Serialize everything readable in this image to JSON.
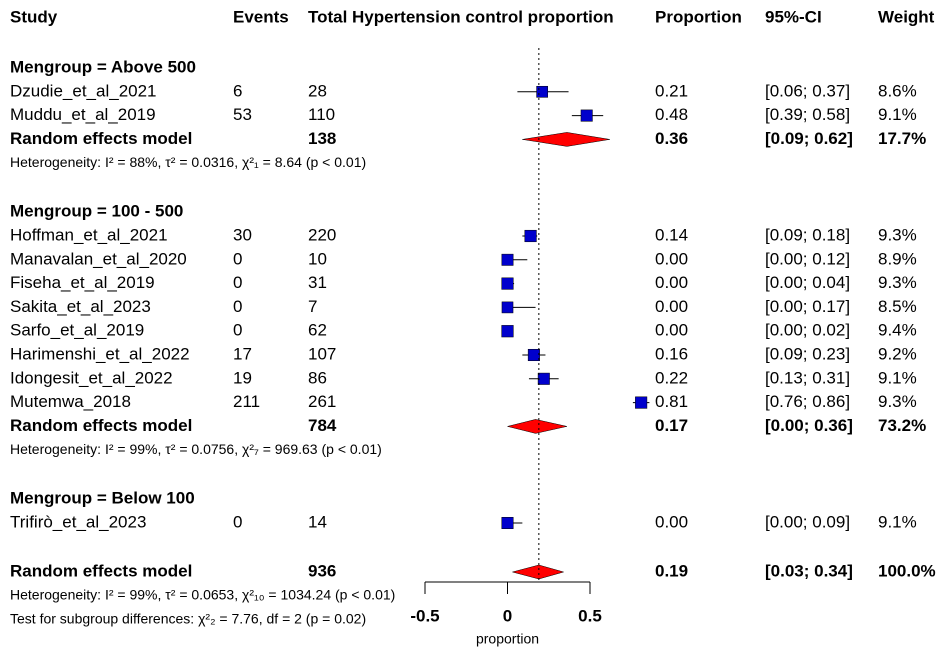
{
  "chart_data": {
    "type": "forest",
    "columns": [
      "Study",
      "Events",
      "Total",
      "Hypertension control proportion",
      "Proportion",
      "95%-CI",
      "Weight"
    ],
    "xlabel": "proportion",
    "xlim": [
      -0.5,
      0.5
    ],
    "xticks": [
      -0.5,
      0,
      0.5
    ],
    "color": "#0000cc",
    "summary_color": "#ff0000",
    "groups": [
      {
        "title": "Mengroup = Above 500",
        "studies": [
          {
            "name": "Dzudie_et_al_2021",
            "events": 6,
            "total": 28,
            "proportion": 0.21,
            "proportion_label": "0.21",
            "ci": [
              0.06,
              0.37
            ],
            "ci_label": "[0.06; 0.37]",
            "weight": 8.6,
            "weight_label": "8.6%"
          },
          {
            "name": "Muddu_et_al_2019",
            "events": 53,
            "total": 110,
            "proportion": 0.48,
            "proportion_label": "0.48",
            "ci": [
              0.39,
              0.58
            ],
            "ci_label": "[0.39; 0.58]",
            "weight": 9.1,
            "weight_label": "9.1%"
          }
        ],
        "summary": {
          "name": "Random effects model",
          "total": 138,
          "proportion": 0.36,
          "proportion_label": "0.36",
          "ci": [
            0.09,
            0.62
          ],
          "ci_label": "[0.09; 0.62]",
          "weight": 17.7,
          "weight_label": "17.7%"
        },
        "heterogeneity": "Heterogeneity: I² = 88%, τ² = 0.0316, χ²₁ = 8.64 (p < 0.01)"
      },
      {
        "title": "Mengroup = 100 - 500",
        "studies": [
          {
            "name": "Hoffman_et_al_2021",
            "events": 30,
            "total": 220,
            "proportion": 0.14,
            "proportion_label": "0.14",
            "ci": [
              0.09,
              0.18
            ],
            "ci_label": "[0.09; 0.18]",
            "weight": 9.3,
            "weight_label": "9.3%"
          },
          {
            "name": "Manavalan_et_al_2020",
            "events": 0,
            "total": 10,
            "proportion": 0,
            "proportion_label": "0.00",
            "ci": [
              0,
              0.12
            ],
            "ci_label": "[0.00; 0.12]",
            "weight": 8.9,
            "weight_label": "8.9%"
          },
          {
            "name": "Fiseha_et_al_2019",
            "events": 0,
            "total": 31,
            "proportion": 0,
            "proportion_label": "0.00",
            "ci": [
              0,
              0.04
            ],
            "ci_label": "[0.00; 0.04]",
            "weight": 9.3,
            "weight_label": "9.3%"
          },
          {
            "name": "Sakita_et_al_2023",
            "events": 0,
            "total": 7,
            "proportion": 0,
            "proportion_label": "0.00",
            "ci": [
              0,
              0.17
            ],
            "ci_label": "[0.00; 0.17]",
            "weight": 8.5,
            "weight_label": "8.5%"
          },
          {
            "name": "Sarfo_et_al_2019",
            "events": 0,
            "total": 62,
            "proportion": 0,
            "proportion_label": "0.00",
            "ci": [
              0,
              0.02
            ],
            "ci_label": "[0.00; 0.02]",
            "weight": 9.4,
            "weight_label": "9.4%"
          },
          {
            "name": "Harimenshi_et_al_2022",
            "events": 17,
            "total": 107,
            "proportion": 0.16,
            "proportion_label": "0.16",
            "ci": [
              0.09,
              0.23
            ],
            "ci_label": "[0.09; 0.23]",
            "weight": 9.2,
            "weight_label": "9.2%"
          },
          {
            "name": "Idongesit_et_al_2022",
            "events": 19,
            "total": 86,
            "proportion": 0.22,
            "proportion_label": "0.22",
            "ci": [
              0.13,
              0.31
            ],
            "ci_label": "[0.13; 0.31]",
            "weight": 9.1,
            "weight_label": "9.1%"
          },
          {
            "name": "Mutemwa_2018",
            "events": 211,
            "total": 261,
            "proportion": 0.81,
            "proportion_label": "0.81",
            "ci": [
              0.76,
              0.86
            ],
            "ci_label": "[0.76; 0.86]",
            "weight": 9.3,
            "weight_label": "9.3%"
          }
        ],
        "summary": {
          "name": "Random effects model",
          "total": 784,
          "proportion": 0.17,
          "proportion_label": "0.17",
          "ci": [
            0,
            0.36
          ],
          "ci_label": "[0.00; 0.36]",
          "weight": 73.2,
          "weight_label": "73.2%"
        },
        "heterogeneity": "Heterogeneity: I² = 99%, τ² = 0.0756, χ²₇ = 969.63 (p < 0.01)"
      },
      {
        "title": "Mengroup = Below 100",
        "studies": [
          {
            "name": "Trifirò_et_al_2023",
            "events": 0,
            "total": 14,
            "proportion": 0,
            "proportion_label": "0.00",
            "ci": [
              0,
              0.09
            ],
            "ci_label": "[0.00; 0.09]",
            "weight": 9.1,
            "weight_label": "9.1%"
          }
        ]
      }
    ],
    "overall": {
      "name": "Random effects model",
      "total": 936,
      "proportion": 0.19,
      "proportion_label": "0.19",
      "ci": [
        0.03,
        0.34
      ],
      "ci_label": "[0.03; 0.34]",
      "weight": 100,
      "weight_label": "100.0%",
      "heterogeneity": "Heterogeneity: I² = 99%, τ² = 0.0653, χ²₁₀ = 1034.24 (p < 0.01)",
      "test": "Test for subgroup differences: χ²₂ = 7.76, df = 2 (p = 0.02)"
    }
  }
}
